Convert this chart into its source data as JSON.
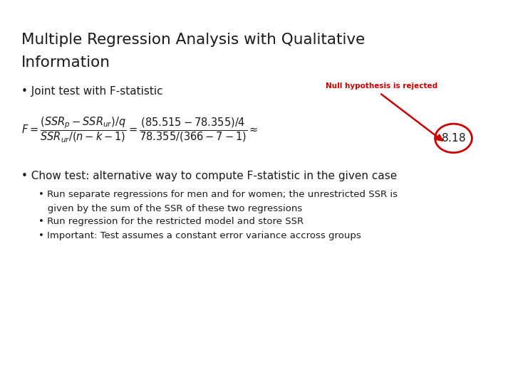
{
  "title_line1": "Multiple Regression Analysis with Qualitative",
  "title_line2": "Information",
  "title_fontsize": 15.5,
  "title_color": "#1a1a1a",
  "background_color": "#ffffff",
  "bullet1": "• Joint test with F-statistic",
  "bullet1_fontsize": 11,
  "null_hyp_label": "Null hypothesis is rejected",
  "null_hyp_fontsize": 7.5,
  "circle_color": "#cc0000",
  "arrow_color": "#cc0000",
  "bullet2": "• Chow test: alternative way to compute F-statistic in the given case",
  "bullet2_fontsize": 11,
  "sub_bullet1_line1": "• Run separate regressions for men and for women; the unrestricted SSR is",
  "sub_bullet1_line2": "   given by the sum of the SSR of these two regressions",
  "sub_bullet2": "• Run regression for the restricted model and store SSR",
  "sub_bullet3": "• Important: Test assumes a constant error variance accross groups",
  "sub_bullet_fontsize": 9.5,
  "formula_fontsize": 10.5,
  "approx_value_fontsize": 11,
  "text_color": "#1a1a1a"
}
